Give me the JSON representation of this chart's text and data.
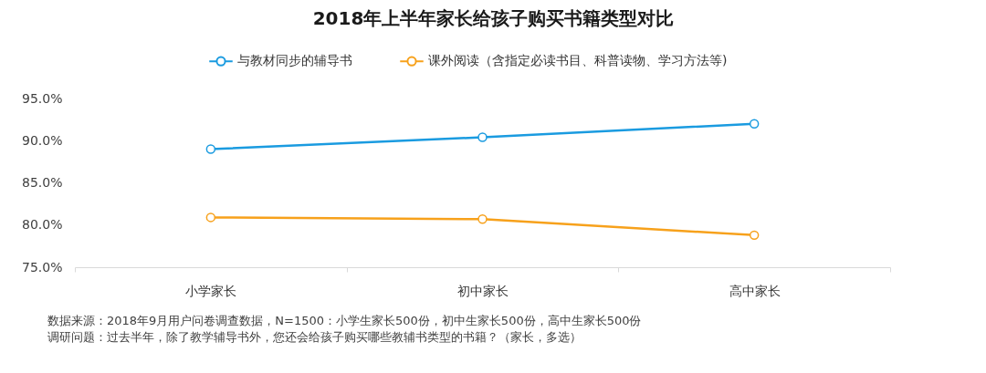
{
  "chart_data": {
    "type": "line",
    "title": "2018年上半年家长给孩子购买书籍类型对比",
    "categories": [
      "小学家长",
      "初中家长",
      "高中家长"
    ],
    "series": [
      {
        "name": "与教材同步的辅导书",
        "color": "#1a9be0",
        "values": [
          89.0,
          90.4,
          92.0
        ]
      },
      {
        "name": "课外阅读（含指定必读书目、科普读物、学习方法等)",
        "color": "#f7a11b",
        "values": [
          80.9,
          80.7,
          78.8
        ]
      }
    ],
    "ylim": [
      75,
      95
    ],
    "yticks": [
      {
        "value": 75,
        "label": "75.0%"
      },
      {
        "value": 80,
        "label": "80.0%"
      },
      {
        "value": 85,
        "label": "85.0%"
      },
      {
        "value": 90,
        "label": "90.0%"
      },
      {
        "value": 95,
        "label": "95.0%"
      }
    ],
    "legend": "top",
    "marker": "circle",
    "line_style": "solid",
    "grid": false,
    "annotations": [
      "数据来源：2018年9月用户问卷调查数据，N=1500：小学生家长500份，初中生家长500份，高中生家长500份",
      "调研问题：过去半年，除了教学辅导书外，您还会给孩子购买哪些教辅书类型的书籍？（家长，多选）"
    ]
  }
}
